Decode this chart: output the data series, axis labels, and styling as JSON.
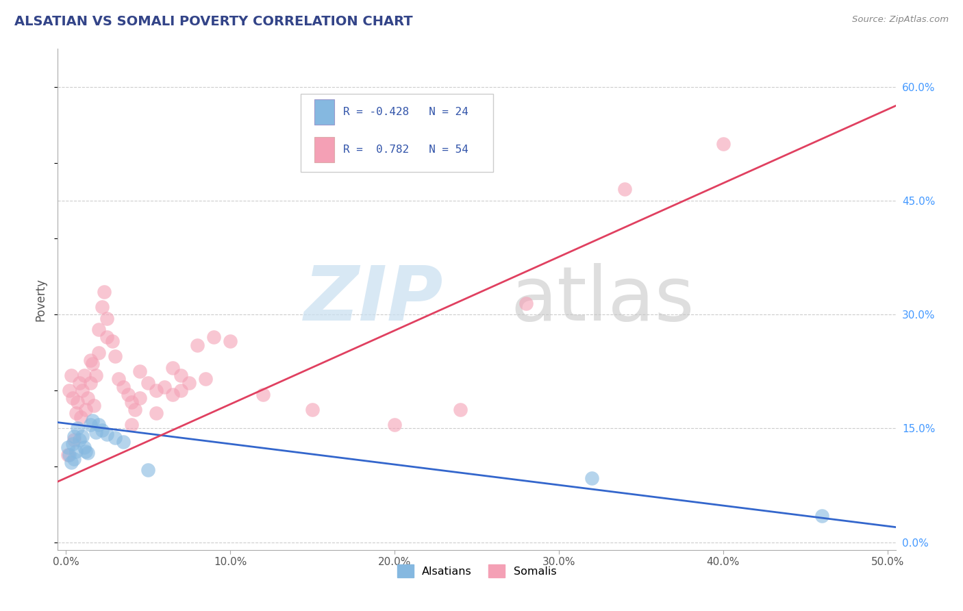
{
  "title": "ALSATIAN VS SOMALI POVERTY CORRELATION CHART",
  "source": "Source: ZipAtlas.com",
  "ylabel": "Poverty",
  "xlim": [
    -0.5,
    50.5
  ],
  "ylim": [
    -1.0,
    65.0
  ],
  "xticks": [
    0,
    10,
    20,
    30,
    40,
    50
  ],
  "xtick_labels": [
    "0.0%",
    "10.0%",
    "20.0%",
    "30.0%",
    "40.0%",
    "50.0%"
  ],
  "yticks_right": [
    0,
    15,
    30,
    45,
    60
  ],
  "ytick_labels_right": [
    "0.0%",
    "15.0%",
    "30.0%",
    "45.0%",
    "60.0%"
  ],
  "grid_color": "#cccccc",
  "background_color": "#ffffff",
  "legend": {
    "alsatian_label": "Alsatians",
    "somali_label": "Somalis",
    "alsatian_R": "-0.428",
    "alsatian_N": "24",
    "somali_R": "0.782",
    "somali_N": "54"
  },
  "alsatian_color": "#85b8e0",
  "somali_color": "#f4a0b5",
  "alsatian_line_color": "#3366cc",
  "somali_line_color": "#e04060",
  "alsatian_scatter": [
    [
      0.1,
      12.5
    ],
    [
      0.2,
      11.5
    ],
    [
      0.3,
      10.5
    ],
    [
      0.4,
      13.0
    ],
    [
      0.5,
      14.0
    ],
    [
      0.6,
      12.0
    ],
    [
      0.7,
      15.0
    ],
    [
      0.5,
      11.0
    ],
    [
      0.8,
      13.5
    ],
    [
      1.0,
      14.0
    ],
    [
      1.1,
      12.5
    ],
    [
      1.2,
      12.0
    ],
    [
      1.3,
      11.8
    ],
    [
      1.5,
      15.5
    ],
    [
      1.6,
      16.0
    ],
    [
      1.8,
      14.5
    ],
    [
      2.0,
      15.5
    ],
    [
      2.2,
      14.8
    ],
    [
      2.5,
      14.2
    ],
    [
      3.0,
      13.8
    ],
    [
      3.5,
      13.2
    ],
    [
      5.0,
      9.5
    ],
    [
      32.0,
      8.5
    ],
    [
      46.0,
      3.5
    ]
  ],
  "somali_scatter": [
    [
      0.1,
      11.5
    ],
    [
      0.2,
      20.0
    ],
    [
      0.3,
      22.0
    ],
    [
      0.4,
      19.0
    ],
    [
      0.5,
      13.5
    ],
    [
      0.6,
      17.0
    ],
    [
      0.7,
      18.5
    ],
    [
      0.8,
      21.0
    ],
    [
      0.9,
      16.5
    ],
    [
      1.0,
      20.0
    ],
    [
      1.1,
      22.0
    ],
    [
      1.2,
      17.5
    ],
    [
      1.3,
      19.0
    ],
    [
      1.5,
      21.0
    ],
    [
      1.5,
      24.0
    ],
    [
      1.6,
      23.5
    ],
    [
      1.7,
      18.0
    ],
    [
      1.8,
      22.0
    ],
    [
      2.0,
      25.0
    ],
    [
      2.0,
      28.0
    ],
    [
      2.2,
      31.0
    ],
    [
      2.3,
      33.0
    ],
    [
      2.5,
      27.0
    ],
    [
      2.5,
      29.5
    ],
    [
      2.8,
      26.5
    ],
    [
      3.0,
      24.5
    ],
    [
      3.2,
      21.5
    ],
    [
      3.5,
      20.5
    ],
    [
      3.8,
      19.5
    ],
    [
      4.0,
      15.5
    ],
    [
      4.0,
      18.5
    ],
    [
      4.2,
      17.5
    ],
    [
      4.5,
      22.5
    ],
    [
      4.5,
      19.0
    ],
    [
      5.0,
      21.0
    ],
    [
      5.5,
      17.0
    ],
    [
      5.5,
      20.0
    ],
    [
      6.0,
      20.5
    ],
    [
      6.5,
      19.5
    ],
    [
      6.5,
      23.0
    ],
    [
      7.0,
      22.0
    ],
    [
      7.0,
      20.0
    ],
    [
      7.5,
      21.0
    ],
    [
      8.0,
      26.0
    ],
    [
      8.5,
      21.5
    ],
    [
      9.0,
      27.0
    ],
    [
      10.0,
      26.5
    ],
    [
      12.0,
      19.5
    ],
    [
      15.0,
      17.5
    ],
    [
      20.0,
      15.5
    ],
    [
      24.0,
      17.5
    ],
    [
      28.0,
      31.5
    ],
    [
      34.0,
      46.5
    ],
    [
      40.0,
      52.5
    ]
  ],
  "alsatian_trendline": [
    [
      -0.5,
      15.8
    ],
    [
      50.5,
      2.0
    ]
  ],
  "somali_trendline": [
    [
      -0.5,
      8.0
    ],
    [
      50.5,
      57.5
    ]
  ]
}
